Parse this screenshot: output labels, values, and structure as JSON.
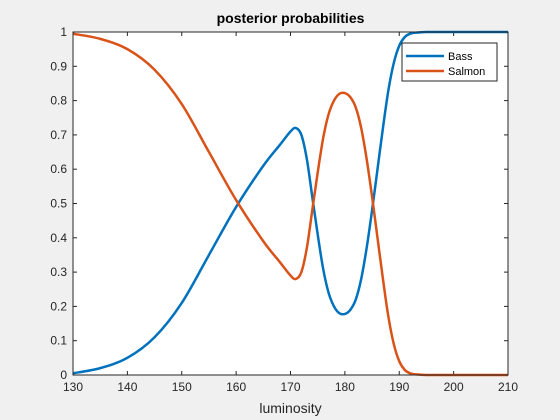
{
  "chart_data": {
    "type": "line",
    "title": "posterior probabilities",
    "xlabel": "luminosity",
    "ylabel": "",
    "xlim": [
      130,
      210
    ],
    "ylim": [
      0,
      1
    ],
    "xticks": [
      "130",
      "140",
      "150",
      "160",
      "170",
      "180",
      "190",
      "200",
      "210"
    ],
    "yticks": [
      "0",
      "0.1",
      "0.2",
      "0.3",
      "0.4",
      "0.5",
      "0.6",
      "0.7",
      "0.8",
      "0.9",
      "1"
    ],
    "grid": false,
    "legend_position": "top-right",
    "x": [
      130,
      135,
      140,
      145,
      150,
      155,
      160,
      165,
      168,
      170,
      171,
      172,
      173,
      174,
      175,
      176,
      177,
      178,
      179,
      180,
      181,
      182,
      183,
      184,
      185,
      186,
      187,
      188,
      189,
      190,
      191,
      192,
      193,
      195,
      200,
      205,
      210
    ],
    "series": [
      {
        "name": "Bass",
        "color": "#0072bd",
        "values": [
          0.005,
          0.02,
          0.05,
          0.11,
          0.21,
          0.35,
          0.49,
          0.61,
          0.67,
          0.71,
          0.72,
          0.7,
          0.63,
          0.52,
          0.41,
          0.31,
          0.24,
          0.2,
          0.18,
          0.178,
          0.19,
          0.22,
          0.28,
          0.37,
          0.48,
          0.6,
          0.72,
          0.83,
          0.91,
          0.96,
          0.985,
          0.995,
          0.998,
          1.0,
          1.0,
          1.0,
          1.0
        ]
      },
      {
        "name": "Salmon",
        "color": "#d95319",
        "values": [
          0.995,
          0.98,
          0.95,
          0.89,
          0.79,
          0.65,
          0.51,
          0.39,
          0.33,
          0.29,
          0.28,
          0.3,
          0.37,
          0.48,
          0.59,
          0.69,
          0.76,
          0.8,
          0.82,
          0.822,
          0.81,
          0.78,
          0.72,
          0.63,
          0.52,
          0.4,
          0.28,
          0.17,
          0.09,
          0.04,
          0.015,
          0.005,
          0.002,
          0.0,
          0.0,
          0.0,
          0.0
        ]
      }
    ]
  }
}
